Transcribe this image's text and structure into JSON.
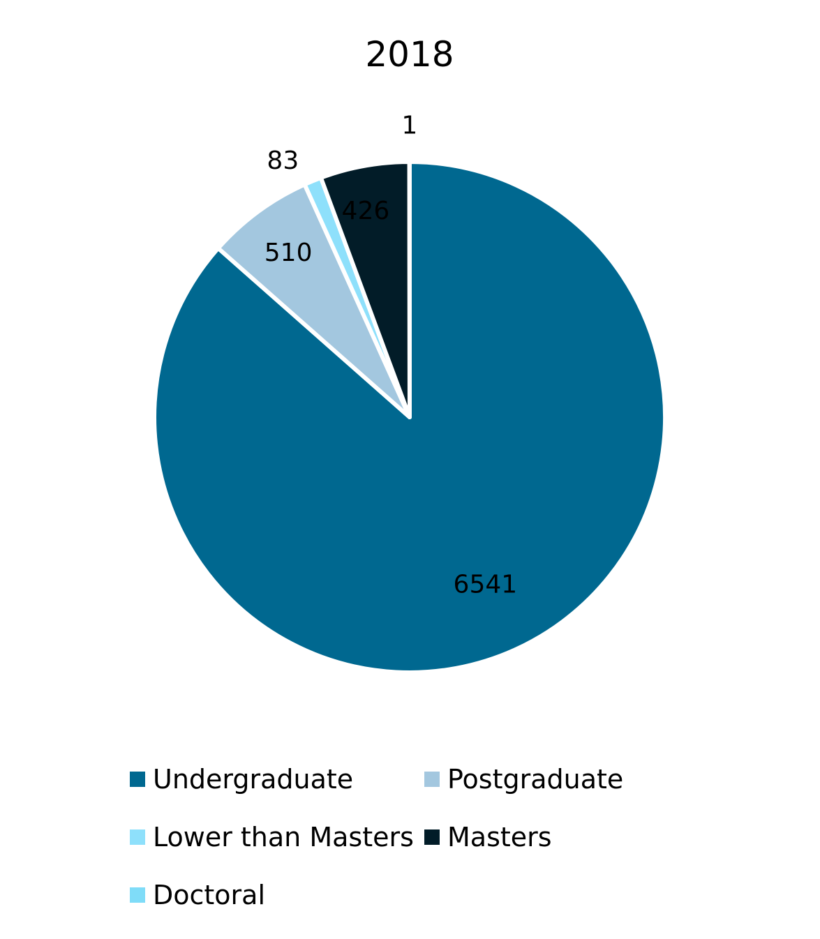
{
  "chart_data": {
    "type": "pie",
    "title": "2018",
    "categories": [
      "Undergraduate",
      "Postgraduate",
      "Lower than Masters",
      "Masters",
      "Doctoral"
    ],
    "values": [
      6541,
      510,
      83,
      426,
      1
    ],
    "colors": [
      "#006890",
      "#a3c7df",
      "#8ee0fb",
      "#021c28",
      "#7fdcf8"
    ],
    "data_labels": [
      "6541",
      "510",
      "83",
      "426",
      "1"
    ],
    "start_angle_deg": 0,
    "direction": "clockwise",
    "legend_position": "bottom"
  }
}
